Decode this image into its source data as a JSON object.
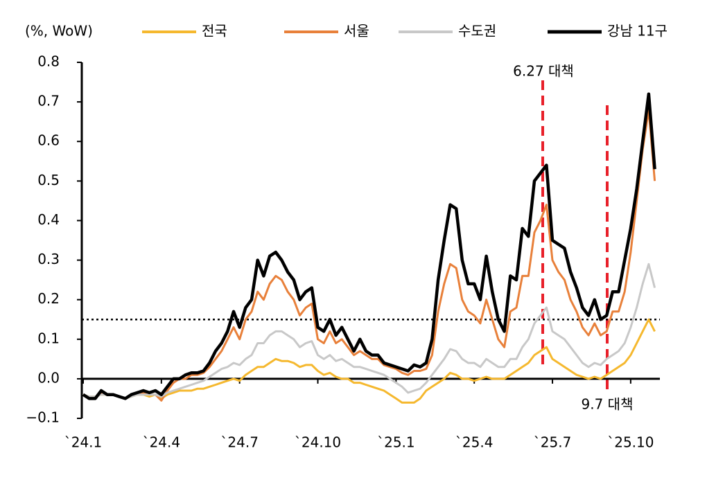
{
  "chart_data": {
    "type": "line",
    "y_label": "(%, WoW)",
    "categories": [
      "`24.1",
      null,
      null,
      null,
      null,
      null,
      null,
      null,
      null,
      null,
      null,
      null,
      null,
      "`24.4",
      null,
      null,
      null,
      null,
      null,
      null,
      null,
      null,
      null,
      null,
      null,
      null,
      "`24.7",
      null,
      null,
      null,
      null,
      null,
      null,
      null,
      null,
      null,
      null,
      null,
      null,
      "`24.10",
      null,
      null,
      null,
      null,
      null,
      null,
      null,
      null,
      null,
      null,
      null,
      null,
      "`25.1",
      null,
      null,
      null,
      null,
      null,
      null,
      null,
      null,
      null,
      null,
      null,
      null,
      "`25.4",
      null,
      null,
      null,
      null,
      null,
      null,
      null,
      null,
      null,
      null,
      null,
      null,
      "`25.7",
      null,
      null,
      null,
      null,
      null,
      null,
      null,
      null,
      null,
      null,
      null,
      null,
      "`25.10",
      null,
      null,
      null,
      null
    ],
    "series": [
      {
        "name": "전국",
        "color": "#f5b82e",
        "values": [
          -0.04,
          -0.045,
          -0.045,
          -0.04,
          -0.04,
          -0.04,
          -0.045,
          -0.05,
          -0.045,
          -0.04,
          -0.04,
          -0.045,
          -0.04,
          -0.05,
          -0.04,
          -0.035,
          -0.03,
          -0.03,
          -0.03,
          -0.025,
          -0.025,
          -0.02,
          -0.015,
          -0.01,
          -0.005,
          0.0,
          -0.005,
          0.01,
          0.02,
          0.03,
          0.03,
          0.04,
          0.05,
          0.045,
          0.045,
          0.04,
          0.03,
          0.035,
          0.035,
          0.02,
          0.01,
          0.015,
          0.005,
          0.0,
          0.0,
          -0.01,
          -0.01,
          -0.015,
          -0.02,
          -0.025,
          -0.03,
          -0.04,
          -0.05,
          -0.06,
          -0.06,
          -0.06,
          -0.05,
          -0.03,
          -0.02,
          -0.01,
          0.0,
          0.015,
          0.01,
          0.0,
          0.0,
          -0.005,
          0.0,
          0.005,
          0.0,
          0.0,
          0.0,
          0.01,
          0.02,
          0.03,
          0.04,
          0.06,
          0.07,
          0.08,
          0.05,
          0.04,
          0.03,
          0.02,
          0.01,
          0.005,
          0.0,
          0.005,
          0.0,
          0.01,
          0.02,
          0.03,
          0.04,
          0.06,
          0.09,
          0.12,
          0.15,
          0.12
        ]
      },
      {
        "name": "서울",
        "color": "#e8803a",
        "values": [
          -0.04,
          -0.05,
          -0.05,
          -0.035,
          -0.04,
          -0.04,
          -0.045,
          -0.05,
          -0.04,
          -0.04,
          -0.035,
          -0.04,
          -0.04,
          -0.055,
          -0.03,
          -0.01,
          0,
          0,
          0.01,
          0.01,
          0.015,
          0.03,
          0.05,
          0.07,
          0.1,
          0.13,
          0.1,
          0.15,
          0.17,
          0.22,
          0.2,
          0.24,
          0.26,
          0.25,
          0.22,
          0.2,
          0.16,
          0.18,
          0.19,
          0.1,
          0.09,
          0.12,
          0.09,
          0.1,
          0.08,
          0.06,
          0.07,
          0.06,
          0.05,
          0.05,
          0.035,
          0.03,
          0.025,
          0.015,
          0.01,
          0.02,
          0.02,
          0.025,
          0.06,
          0.17,
          0.24,
          0.29,
          0.28,
          0.2,
          0.17,
          0.16,
          0.14,
          0.2,
          0.15,
          0.1,
          0.08,
          0.17,
          0.18,
          0.26,
          0.26,
          0.37,
          0.4,
          0.44,
          0.3,
          0.27,
          0.25,
          0.2,
          0.17,
          0.13,
          0.11,
          0.14,
          0.11,
          0.12,
          0.17,
          0.17,
          0.22,
          0.32,
          0.45,
          0.58,
          0.68,
          0.5
        ]
      },
      {
        "name": "수도권",
        "color": "#c8c8c8",
        "values": [
          -0.04,
          -0.045,
          -0.045,
          -0.04,
          -0.04,
          -0.04,
          -0.045,
          -0.05,
          -0.045,
          -0.04,
          -0.04,
          -0.04,
          -0.04,
          -0.045,
          -0.035,
          -0.03,
          -0.025,
          -0.02,
          -0.015,
          -0.01,
          -0.005,
          0.005,
          0.015,
          0.025,
          0.03,
          0.04,
          0.035,
          0.05,
          0.06,
          0.09,
          0.09,
          0.11,
          0.12,
          0.12,
          0.11,
          0.1,
          0.08,
          0.09,
          0.095,
          0.06,
          0.05,
          0.06,
          0.045,
          0.05,
          0.04,
          0.03,
          0.03,
          0.025,
          0.02,
          0.015,
          0.01,
          0.0,
          -0.01,
          -0.02,
          -0.035,
          -0.03,
          -0.025,
          -0.01,
          0.01,
          0.03,
          0.05,
          0.075,
          0.07,
          0.05,
          0.04,
          0.04,
          0.03,
          0.05,
          0.04,
          0.03,
          0.03,
          0.05,
          0.05,
          0.08,
          0.1,
          0.14,
          0.16,
          0.18,
          0.12,
          0.11,
          0.1,
          0.08,
          0.06,
          0.04,
          0.03,
          0.04,
          0.035,
          0.05,
          0.06,
          0.07,
          0.09,
          0.13,
          0.18,
          0.24,
          0.29,
          0.23
        ]
      },
      {
        "name": "강남 11구",
        "color": "#000000",
        "values": [
          -0.04,
          -0.05,
          -0.05,
          -0.03,
          -0.04,
          -0.04,
          -0.045,
          -0.05,
          -0.04,
          -0.035,
          -0.03,
          -0.035,
          -0.03,
          -0.04,
          -0.02,
          0,
          0,
          0.01,
          0.015,
          0.015,
          0.02,
          0.04,
          0.07,
          0.09,
          0.12,
          0.17,
          0.13,
          0.18,
          0.2,
          0.3,
          0.26,
          0.31,
          0.32,
          0.3,
          0.27,
          0.25,
          0.2,
          0.22,
          0.23,
          0.13,
          0.12,
          0.15,
          0.11,
          0.13,
          0.1,
          0.07,
          0.1,
          0.07,
          0.06,
          0.06,
          0.04,
          0.035,
          0.03,
          0.025,
          0.02,
          0.035,
          0.03,
          0.04,
          0.1,
          0.25,
          0.35,
          0.44,
          0.43,
          0.3,
          0.24,
          0.24,
          0.2,
          0.31,
          0.22,
          0.15,
          0.12,
          0.26,
          0.25,
          0.38,
          0.36,
          0.5,
          0.52,
          0.54,
          0.35,
          0.34,
          0.33,
          0.27,
          0.23,
          0.18,
          0.16,
          0.2,
          0.15,
          0.16,
          0.22,
          0.22,
          0.3,
          0.38,
          0.48,
          0.6,
          0.72,
          0.53
        ]
      }
    ],
    "ylim": [
      -0.1,
      0.8
    ],
    "yticks": [
      {
        "value": -0.1,
        "label": "−0.1"
      },
      {
        "value": 0,
        "label": "0.0"
      },
      0.1,
      0.2,
      0.3,
      0.4,
      0.5,
      0.6,
      0.7,
      0.8
    ],
    "reference_line": 0.15,
    "annotations": [
      "6.27 대책",
      "9.7 대책"
    ]
  }
}
